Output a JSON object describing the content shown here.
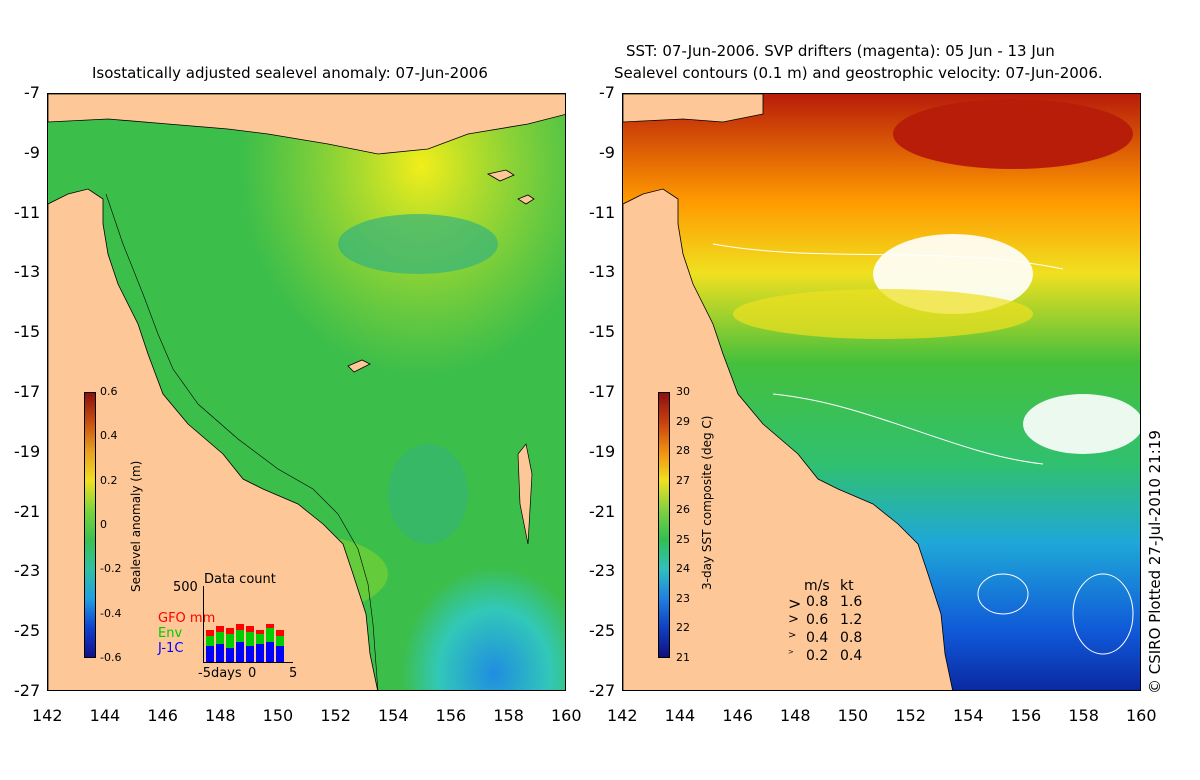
{
  "left_panel": {
    "title": "Isostatically adjusted sealevel anomaly: 07-Jun-2006",
    "colorbar": {
      "label": "Sealevel anomaly (m)",
      "ticks": [
        "0.6",
        "0.4",
        "0.2",
        "0",
        "-0.2",
        "-0.4",
        "-0.6"
      ]
    },
    "inset": {
      "title": "Data count",
      "ymax": "500",
      "series": [
        {
          "name": "GFO mm",
          "color": "#ff0000"
        },
        {
          "name": "Env",
          "color": "#00cc00"
        },
        {
          "name": "J-1C",
          "color": "#0000ff"
        }
      ],
      "xlabels": [
        "-5days",
        "0",
        "5"
      ]
    }
  },
  "right_panel": {
    "title_line1": "SST: 07-Jun-2006. SVP drifters (magenta): 05 Jun - 13 Jun",
    "title_line2": "Sealevel contours (0.1 m) and geostrophic velocity: 07-Jun-2006.",
    "colorbar": {
      "label": "3-day SST composite (deg C)",
      "ticks": [
        "30",
        "29",
        "28",
        "27",
        "26",
        "25",
        "24",
        "23",
        "22",
        "21"
      ]
    },
    "velocity_legend": {
      "header_ms": "m/s",
      "header_kt": "kt",
      "rows": [
        {
          "ms": "0.8",
          "kt": "1.6"
        },
        {
          "ms": "0.6",
          "kt": "1.2"
        },
        {
          "ms": "0.4",
          "kt": "0.8"
        },
        {
          "ms": "0.2",
          "kt": "0.4"
        }
      ]
    }
  },
  "axes": {
    "lat_labels": [
      "-7",
      "-9",
      "-11",
      "-13",
      "-15",
      "-17",
      "-19",
      "-21",
      "-23",
      "-25",
      "-27"
    ],
    "lon_labels": [
      "142",
      "144",
      "146",
      "148",
      "150",
      "152",
      "154",
      "156",
      "158",
      "160"
    ]
  },
  "copyright": "© CSIRO Plotted 27-Jul-2010 21:19"
}
